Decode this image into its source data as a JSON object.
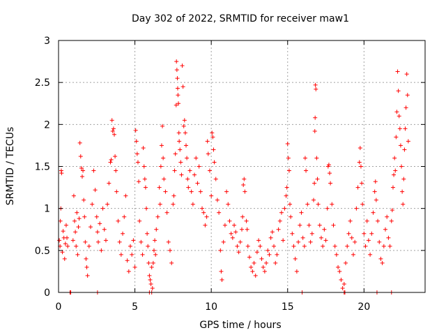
{
  "chart_data": {
    "type": "scatter",
    "title": "Day 302 of 2022, SRMTID for receiver maw1",
    "xlabel": "GPS time / hours",
    "ylabel": "SRMTID / TECUs",
    "xlim": [
      0,
      24
    ],
    "ylim": [
      0,
      3
    ],
    "xticks": [
      0,
      5,
      10,
      15,
      20
    ],
    "xtick_labels": [
      "0",
      "5",
      "10",
      "15",
      "20"
    ],
    "yticks": [
      0,
      0.5,
      1,
      1.5,
      2,
      2.5,
      3
    ],
    "ytick_labels": [
      "0",
      "0.5",
      "1",
      "1.5",
      "2",
      "2.5",
      "3"
    ],
    "grid": true,
    "marker": "plus",
    "color": "#ff0000",
    "series": [
      {
        "name": "maw1",
        "points": [
          [
            0.05,
            0.62
          ],
          [
            0.1,
            0.55
          ],
          [
            0.12,
            0.85
          ],
          [
            0.15,
            1.0
          ],
          [
            0.18,
            1.45
          ],
          [
            0.2,
            1.42
          ],
          [
            0.25,
            0.48
          ],
          [
            0.3,
            0.73
          ],
          [
            0.35,
            0.65
          ],
          [
            0.4,
            0.4
          ],
          [
            0.45,
            0.58
          ],
          [
            0.5,
            0.8
          ],
          [
            0.55,
            0.65
          ],
          [
            0.6,
            0.55
          ],
          [
            0.95,
            0.62
          ],
          [
            1.0,
            1.15
          ],
          [
            1.05,
            0.85
          ],
          [
            1.1,
            0.72
          ],
          [
            1.15,
            0.55
          ],
          [
            1.2,
            0.95
          ],
          [
            1.25,
            0.45
          ],
          [
            1.3,
            0.78
          ],
          [
            1.35,
            0.88
          ],
          [
            1.4,
            1.78
          ],
          [
            1.45,
            1.62
          ],
          [
            1.5,
            1.48
          ],
          [
            1.55,
            1.38
          ],
          [
            1.6,
            1.45
          ],
          [
            1.65,
            1.1
          ],
          [
            1.7,
            0.9
          ],
          [
            1.75,
            0.6
          ],
          [
            1.8,
            0.4
          ],
          [
            1.85,
            0.3
          ],
          [
            1.9,
            0.2
          ],
          [
            2.0,
            0.55
          ],
          [
            2.1,
            0.78
          ],
          [
            2.2,
            1.05
          ],
          [
            2.3,
            1.45
          ],
          [
            2.4,
            1.22
          ],
          [
            2.5,
            0.9
          ],
          [
            2.55,
            0.72
          ],
          [
            2.6,
            0.6
          ],
          [
            2.7,
            0.82
          ],
          [
            2.8,
            0.5
          ],
          [
            2.9,
            1.0
          ],
          [
            3.0,
            0.75
          ],
          [
            3.1,
            0.62
          ],
          [
            3.2,
            1.05
          ],
          [
            3.3,
            1.3
          ],
          [
            3.4,
            1.55
          ],
          [
            3.45,
            1.58
          ],
          [
            3.5,
            2.05
          ],
          [
            3.55,
            1.92
          ],
          [
            3.6,
            1.95
          ],
          [
            3.65,
            1.88
          ],
          [
            3.7,
            1.62
          ],
          [
            3.75,
            1.45
          ],
          [
            3.8,
            1.2
          ],
          [
            3.9,
            0.85
          ],
          [
            4.0,
            0.6
          ],
          [
            4.1,
            0.45
          ],
          [
            4.2,
            0.7
          ],
          [
            4.3,
            0.9
          ],
          [
            4.4,
            1.15
          ],
          [
            4.5,
            0.38
          ],
          [
            4.6,
            0.25
          ],
          [
            4.7,
            0.55
          ],
          [
            4.8,
            0.45
          ],
          [
            4.9,
            0.62
          ],
          [
            5.0,
            0.3
          ],
          [
            5.05,
            1.93
          ],
          [
            5.1,
            1.8
          ],
          [
            5.15,
            1.65
          ],
          [
            5.2,
            1.55
          ],
          [
            5.25,
            1.32
          ],
          [
            5.3,
            0.85
          ],
          [
            5.4,
            0.6
          ],
          [
            5.5,
            0.45
          ],
          [
            5.55,
            1.72
          ],
          [
            5.6,
            1.5
          ],
          [
            5.65,
            1.35
          ],
          [
            5.7,
            1.25
          ],
          [
            5.75,
            1.0
          ],
          [
            5.8,
            0.7
          ],
          [
            5.85,
            0.55
          ],
          [
            5.9,
            0.35
          ],
          [
            5.95,
            0.2
          ],
          [
            6.0,
            0.15
          ],
          [
            6.05,
            0.1
          ],
          [
            6.1,
            0.3
          ],
          [
            6.15,
            0.05
          ],
          [
            6.2,
            0.35
          ],
          [
            6.25,
            0.5
          ],
          [
            6.3,
            0.62
          ],
          [
            6.35,
            0.45
          ],
          [
            6.4,
            0.75
          ],
          [
            6.5,
            0.9
          ],
          [
            6.6,
            1.25
          ],
          [
            6.65,
            1.05
          ],
          [
            6.7,
            1.5
          ],
          [
            6.75,
            1.75
          ],
          [
            6.8,
            1.98
          ],
          [
            6.85,
            1.6
          ],
          [
            6.9,
            1.35
          ],
          [
            7.0,
            1.2
          ],
          [
            7.1,
            0.95
          ],
          [
            7.2,
            0.6
          ],
          [
            7.3,
            0.5
          ],
          [
            7.4,
            0.35
          ],
          [
            7.5,
            1.05
          ],
          [
            7.55,
            1.15
          ],
          [
            7.6,
            1.45
          ],
          [
            7.65,
            1.65
          ],
          [
            7.7,
            2.23
          ],
          [
            7.72,
            2.75
          ],
          [
            7.75,
            2.65
          ],
          [
            7.78,
            2.55
          ],
          [
            7.8,
            2.43
          ],
          [
            7.82,
            2.35
          ],
          [
            7.85,
            2.25
          ],
          [
            7.88,
            1.9
          ],
          [
            7.9,
            1.8
          ],
          [
            7.95,
            1.7
          ],
          [
            8.0,
            1.55
          ],
          [
            8.05,
            1.4
          ],
          [
            8.1,
            2.7
          ],
          [
            8.15,
            2.45
          ],
          [
            8.2,
            1.98
          ],
          [
            8.25,
            2.05
          ],
          [
            8.3,
            1.9
          ],
          [
            8.35,
            1.75
          ],
          [
            8.4,
            1.6
          ],
          [
            8.45,
            1.35
          ],
          [
            8.5,
            1.25
          ],
          [
            8.6,
            1.45
          ],
          [
            8.7,
            1.2
          ],
          [
            8.8,
            1.05
          ],
          [
            8.9,
            1.4
          ],
          [
            9.0,
            1.6
          ],
          [
            9.1,
            1.3
          ],
          [
            9.2,
            1.5
          ],
          [
            9.3,
            1.2
          ],
          [
            9.4,
            1.0
          ],
          [
            9.5,
            0.95
          ],
          [
            9.6,
            0.8
          ],
          [
            9.7,
            0.9
          ],
          [
            9.75,
            1.8
          ],
          [
            9.8,
            1.65
          ],
          [
            9.9,
            1.45
          ],
          [
            10.0,
            1.15
          ],
          [
            10.05,
            1.9
          ],
          [
            10.1,
            1.85
          ],
          [
            10.15,
            1.7
          ],
          [
            10.2,
            1.55
          ],
          [
            10.3,
            1.35
          ],
          [
            10.4,
            1.1
          ],
          [
            10.5,
            0.95
          ],
          [
            10.6,
            0.5
          ],
          [
            10.65,
            0.25
          ],
          [
            10.7,
            0.15
          ],
          [
            10.8,
            0.6
          ],
          [
            10.9,
            0.8
          ],
          [
            11.0,
            1.2
          ],
          [
            11.1,
            1.05
          ],
          [
            11.2,
            0.85
          ],
          [
            11.3,
            0.7
          ],
          [
            11.4,
            0.65
          ],
          [
            11.5,
            0.8
          ],
          [
            11.6,
            0.72
          ],
          [
            11.7,
            0.55
          ],
          [
            11.8,
            0.48
          ],
          [
            11.9,
            0.6
          ],
          [
            12.0,
            0.75
          ],
          [
            12.05,
            0.9
          ],
          [
            12.1,
            1.28
          ],
          [
            12.15,
            1.35
          ],
          [
            12.2,
            1.2
          ],
          [
            12.3,
            0.85
          ],
          [
            12.35,
            0.75
          ],
          [
            12.4,
            0.55
          ],
          [
            12.5,
            0.42
          ],
          [
            12.6,
            0.3
          ],
          [
            12.7,
            0.25
          ],
          [
            12.8,
            0.35
          ],
          [
            12.9,
            0.2
          ],
          [
            13.0,
            0.48
          ],
          [
            13.1,
            0.62
          ],
          [
            13.2,
            0.55
          ],
          [
            13.3,
            0.4
          ],
          [
            13.4,
            0.3
          ],
          [
            13.5,
            0.25
          ],
          [
            13.6,
            0.35
          ],
          [
            13.7,
            0.5
          ],
          [
            13.8,
            0.45
          ],
          [
            13.9,
            0.65
          ],
          [
            14.0,
            0.72
          ],
          [
            14.1,
            0.55
          ],
          [
            14.2,
            0.35
          ],
          [
            14.3,
            0.45
          ],
          [
            14.4,
            0.75
          ],
          [
            14.5,
            0.85
          ],
          [
            14.6,
            0.95
          ],
          [
            14.7,
            0.62
          ],
          [
            14.8,
            1.0
          ],
          [
            14.9,
            1.15
          ],
          [
            14.95,
            1.25
          ],
          [
            15.0,
            1.77
          ],
          [
            15.05,
            1.6
          ],
          [
            15.1,
            1.45
          ],
          [
            15.15,
            1.05
          ],
          [
            15.2,
            0.9
          ],
          [
            15.3,
            0.7
          ],
          [
            15.4,
            0.55
          ],
          [
            15.5,
            0.4
          ],
          [
            15.6,
            0.25
          ],
          [
            15.7,
            0.6
          ],
          [
            15.8,
            0.8
          ],
          [
            15.9,
            0.95
          ],
          [
            16.0,
            0.65
          ],
          [
            16.1,
            0.55
          ],
          [
            16.15,
            1.6
          ],
          [
            16.2,
            1.45
          ],
          [
            16.3,
            1.05
          ],
          [
            16.4,
            0.8
          ],
          [
            16.5,
            0.6
          ],
          [
            16.6,
            0.7
          ],
          [
            16.7,
            1.1
          ],
          [
            16.75,
            1.3
          ],
          [
            16.78,
            1.92
          ],
          [
            16.8,
            2.08
          ],
          [
            16.82,
            2.47
          ],
          [
            16.85,
            2.42
          ],
          [
            16.9,
            1.6
          ],
          [
            16.95,
            1.35
          ],
          [
            17.0,
            1.05
          ],
          [
            17.1,
            0.8
          ],
          [
            17.2,
            0.65
          ],
          [
            17.3,
            0.55
          ],
          [
            17.4,
            0.75
          ],
          [
            17.5,
            0.62
          ],
          [
            17.6,
            1.0
          ],
          [
            17.65,
            1.5
          ],
          [
            17.7,
            1.52
          ],
          [
            17.75,
            1.42
          ],
          [
            17.8,
            1.3
          ],
          [
            17.9,
            1.05
          ],
          [
            18.0,
            0.8
          ],
          [
            18.1,
            0.55
          ],
          [
            18.2,
            0.45
          ],
          [
            18.3,
            0.3
          ],
          [
            18.4,
            0.25
          ],
          [
            18.5,
            0.15
          ],
          [
            18.6,
            0.05
          ],
          [
            18.7,
            0.1
          ],
          [
            18.8,
            0.35
          ],
          [
            18.9,
            0.55
          ],
          [
            19.0,
            0.7
          ],
          [
            19.1,
            0.85
          ],
          [
            19.2,
            0.65
          ],
          [
            19.3,
            0.45
          ],
          [
            19.4,
            0.6
          ],
          [
            19.5,
            1.0
          ],
          [
            19.6,
            1.25
          ],
          [
            19.7,
            1.55
          ],
          [
            19.75,
            1.72
          ],
          [
            19.8,
            1.5
          ],
          [
            19.85,
            1.3
          ],
          [
            19.9,
            1.05
          ],
          [
            20.0,
            0.7
          ],
          [
            20.1,
            0.55
          ],
          [
            20.2,
            0.85
          ],
          [
            20.3,
            0.62
          ],
          [
            20.4,
            0.45
          ],
          [
            20.5,
            0.7
          ],
          [
            20.6,
            0.95
          ],
          [
            20.7,
            1.2
          ],
          [
            20.75,
            1.32
          ],
          [
            20.8,
            1.1
          ],
          [
            20.9,
            0.85
          ],
          [
            21.0,
            0.6
          ],
          [
            21.1,
            0.4
          ],
          [
            21.2,
            0.35
          ],
          [
            21.3,
            0.55
          ],
          [
            21.4,
            0.75
          ],
          [
            21.5,
            0.9
          ],
          [
            21.6,
            0.65
          ],
          [
            21.7,
            0.55
          ],
          [
            21.8,
            0.85
          ],
          [
            21.85,
            0.98
          ],
          [
            21.9,
            1.25
          ],
          [
            21.95,
            1.4
          ],
          [
            22.0,
            1.6
          ],
          [
            22.05,
            1.45
          ],
          [
            22.1,
            1.85
          ],
          [
            22.15,
            2.15
          ],
          [
            22.2,
            2.63
          ],
          [
            22.25,
            2.4
          ],
          [
            22.3,
            2.1
          ],
          [
            22.35,
            1.95
          ],
          [
            22.4,
            1.75
          ],
          [
            22.45,
            1.5
          ],
          [
            22.5,
            1.2
          ],
          [
            22.55,
            1.05
          ],
          [
            22.6,
            1.35
          ],
          [
            22.65,
            1.7
          ],
          [
            22.7,
            1.95
          ],
          [
            22.75,
            2.2
          ],
          [
            22.8,
            2.6
          ],
          [
            22.85,
            2.35
          ],
          [
            22.9,
            1.8
          ],
          [
            0.75,
            0.0
          ],
          [
            0.8,
            0.0
          ],
          [
            2.55,
            0.0
          ],
          [
            5.95,
            0.0
          ],
          [
            6.1,
            0.0
          ],
          [
            15.95,
            0.0
          ],
          [
            18.7,
            0.0
          ],
          [
            18.75,
            0.0
          ],
          [
            20.85,
            0.0
          ],
          [
            21.8,
            0.0
          ]
        ]
      }
    ]
  }
}
